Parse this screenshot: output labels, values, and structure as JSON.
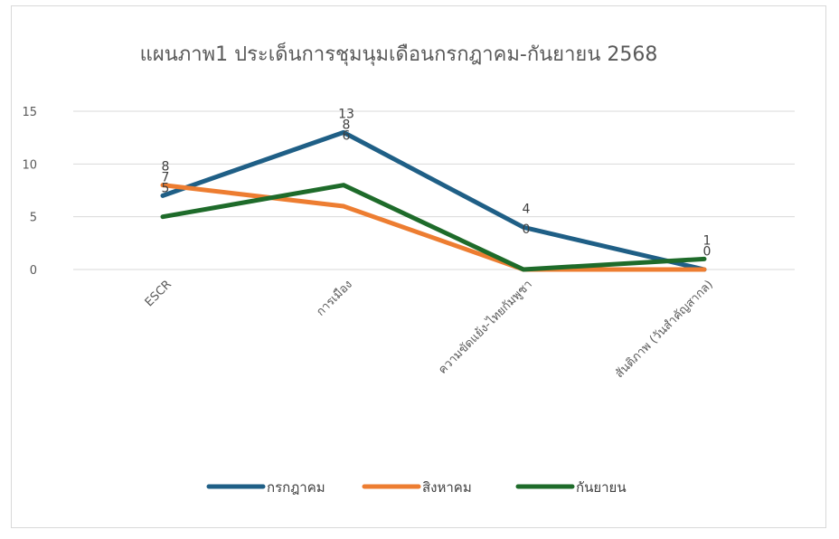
{
  "chart_data": {
    "type": "line",
    "title": "แผนภาพ1 ประเด็นการชุมนุมเดือนกรกฎาคม-กันยายน 2568",
    "categories": [
      "ESCR",
      "การเมือง",
      "ความขัดแย้ง-ไทยกัมพูชา",
      "สันติภาพ (วันสำคัญสากล)"
    ],
    "y_ticks": [
      "0",
      "5",
      "10",
      "15"
    ],
    "ylim": [
      0,
      15
    ],
    "grid": true,
    "legend_position": "bottom",
    "series": [
      {
        "name": "กรกฎาคม",
        "values": [
          7,
          13,
          4,
          0
        ],
        "color": "#1f5f86"
      },
      {
        "name": "สิงหาคม",
        "values": [
          8,
          6,
          0,
          0
        ],
        "color": "#ed7d31"
      },
      {
        "name": "กันยายน",
        "values": [
          5,
          8,
          0,
          1
        ],
        "color": "#1e6b2a"
      }
    ],
    "data_labels": [
      {
        "category": 0,
        "text": "8",
        "value": 8
      },
      {
        "category": 0,
        "text": "7",
        "value": 7
      },
      {
        "category": 0,
        "text": "5",
        "value": 5
      },
      {
        "category": 1,
        "text": "13",
        "value": 13
      },
      {
        "category": 1,
        "text": "8",
        "value": 8
      },
      {
        "category": 1,
        "text": "6",
        "value": 6
      },
      {
        "category": 2,
        "text": "4",
        "value": 4
      },
      {
        "category": 2,
        "text": "0",
        "value": 0
      },
      {
        "category": 3,
        "text": "1",
        "value": 1
      },
      {
        "category": 3,
        "text": "0",
        "value": 0
      }
    ]
  }
}
